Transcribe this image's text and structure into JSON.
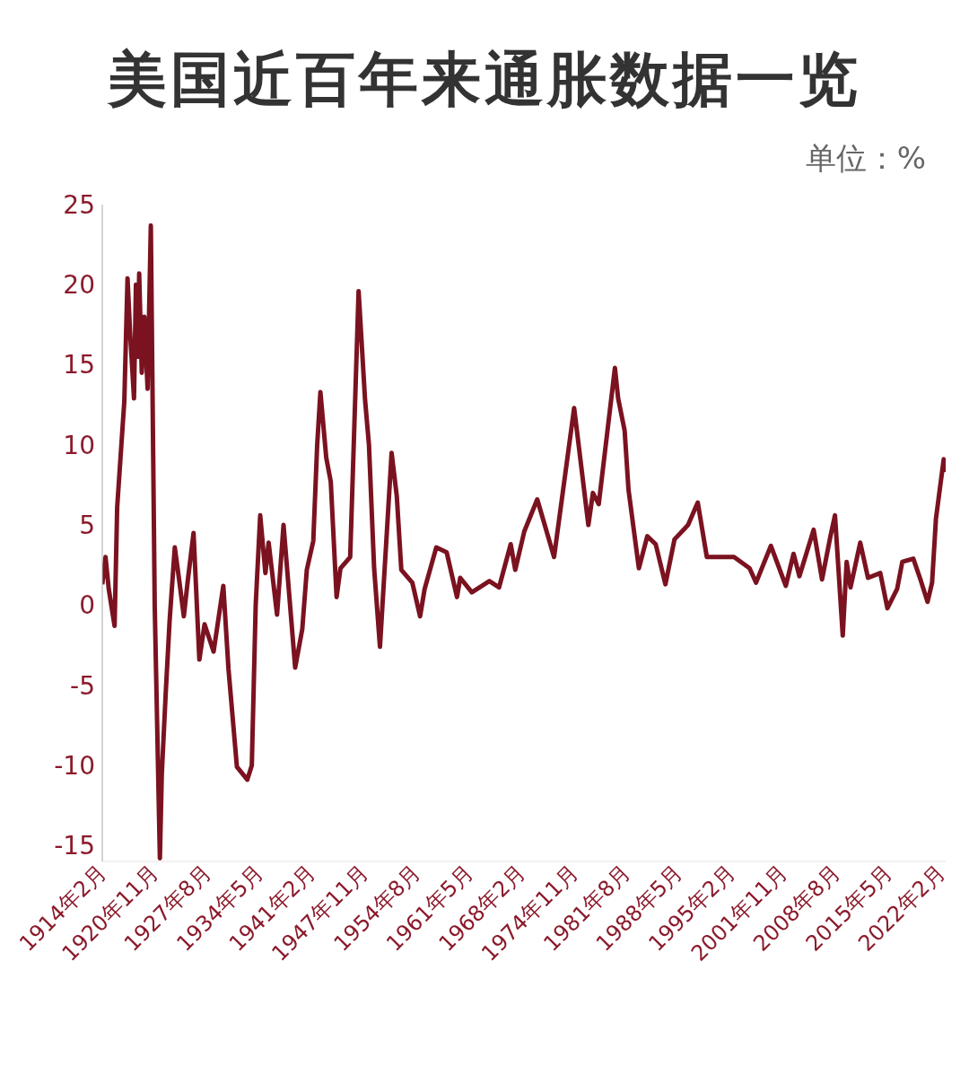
{
  "chart_data": {
    "type": "line",
    "title": "美国近百年来通胀数据一览",
    "annotations": [
      "单位：%"
    ],
    "x": [
      "1914-02",
      "1914-07",
      "1914-12",
      "1915-09",
      "1916-01",
      "1916-12",
      "1917-05",
      "1917-09",
      "1918-03",
      "1918-06",
      "1918-09",
      "1918-11",
      "1919-03",
      "1919-07",
      "1919-12",
      "1920-05",
      "1920-11",
      "1921-07",
      "1921-10",
      "1922-04",
      "1922-10",
      "1923-06",
      "1924-01",
      "1924-08",
      "1925-02",
      "1925-11",
      "1926-08",
      "1927-04",
      "1928-06",
      "1929-09",
      "1930-05",
      "1931-06",
      "1932-10",
      "1933-05",
      "1933-11",
      "1934-06",
      "1935-02",
      "1935-07",
      "1936-08",
      "1937-06",
      "1938-12",
      "1939-11",
      "1940-06",
      "1941-04",
      "1941-10",
      "1942-03",
      "1942-12",
      "1943-07",
      "1944-04",
      "1944-10",
      "1946-01",
      "1947-02",
      "1947-12",
      "1948-06",
      "1949-02",
      "1949-11",
      "1951-05",
      "1952-01",
      "1952-08",
      "1954-01",
      "1955-01",
      "1955-08",
      "1957-02",
      "1958-06",
      "1959-10",
      "1960-03",
      "1961-09",
      "1963-12",
      "1965-03",
      "1966-09",
      "1967-04",
      "1968-06",
      "1970-02",
      "1972-04",
      "1974-11",
      "1976-09",
      "1977-04",
      "1978-01",
      "1980-02",
      "1980-07",
      "1981-05",
      "1981-11",
      "1983-03",
      "1984-04",
      "1985-05",
      "1986-08",
      "1987-10",
      "1989-07",
      "1990-10",
      "1991-12",
      "1993-06",
      "1995-06",
      "1997-06",
      "1998-04",
      "2000-03",
      "2002-02",
      "2003-02",
      "2003-11",
      "2005-09",
      "2006-10",
      "2007-11",
      "2008-06",
      "2009-06",
      "2009-12",
      "2010-06",
      "2011-09",
      "2012-09",
      "2014-04",
      "2015-03",
      "2016-06",
      "2017-02",
      "2018-07",
      "2019-06",
      "2020-05",
      "2020-12",
      "2021-06",
      "2022-06",
      "2022-08"
    ],
    "series": [
      {
        "color": "#7b1220",
        "values": [
          1.3,
          3.0,
          1.0,
          -1.3,
          6.1,
          12.7,
          20.4,
          17.0,
          12.9,
          20.0,
          15.5,
          20.7,
          14.5,
          18.0,
          13.5,
          23.7,
          0.0,
          -15.8,
          -10.5,
          -5.5,
          -1.0,
          3.6,
          1.5,
          -0.7,
          1.5,
          4.5,
          -3.4,
          -1.2,
          -2.9,
          1.2,
          -4.0,
          -10.1,
          -10.9,
          -10.0,
          0.0,
          5.6,
          2.0,
          3.9,
          -0.6,
          5.0,
          -3.9,
          -1.5,
          2.2,
          4.0,
          10.0,
          13.3,
          9.2,
          7.7,
          0.5,
          2.3,
          3.0,
          19.6,
          12.8,
          10.0,
          2.3,
          -2.6,
          9.5,
          6.8,
          2.2,
          1.4,
          -0.7,
          1.0,
          3.6,
          3.3,
          0.5,
          1.7,
          0.8,
          1.5,
          1.1,
          3.8,
          2.2,
          4.6,
          6.6,
          3.0,
          12.3,
          5.0,
          7.0,
          6.3,
          14.8,
          12.9,
          10.9,
          7.2,
          2.3,
          4.3,
          3.8,
          1.3,
          4.1,
          5.0,
          6.4,
          3.0,
          3.0,
          3.0,
          2.3,
          1.4,
          3.7,
          1.2,
          3.2,
          1.8,
          4.7,
          1.6,
          4.3,
          5.6,
          -1.9,
          2.7,
          1.1,
          3.9,
          1.7,
          2.0,
          -0.2,
          1.0,
          2.7,
          2.9,
          1.6,
          0.2,
          1.4,
          5.4,
          9.1,
          8.3
        ]
      }
    ],
    "xlim": [
      "1914-02",
      "2022-09"
    ],
    "xticks": [
      {
        "value": "1914-02",
        "label": "1914年2月"
      },
      {
        "value": "1920-11",
        "label": "1920年11月"
      },
      {
        "value": "1927-08",
        "label": "1927年8月"
      },
      {
        "value": "1934-05",
        "label": "1934年5月"
      },
      {
        "value": "1941-02",
        "label": "1941年2月"
      },
      {
        "value": "1947-11",
        "label": "1947年11月"
      },
      {
        "value": "1954-08",
        "label": "1954年8月"
      },
      {
        "value": "1961-05",
        "label": "1961年5月"
      },
      {
        "value": "1968-02",
        "label": "1968年2月"
      },
      {
        "value": "1974-11",
        "label": "1974年11月"
      },
      {
        "value": "1981-08",
        "label": "1981年8月"
      },
      {
        "value": "1988-05",
        "label": "1988年5月"
      },
      {
        "value": "1995-02",
        "label": "1995年2月"
      },
      {
        "value": "2001-11",
        "label": "2001年11月"
      },
      {
        "value": "2008-08",
        "label": "2008年8月"
      },
      {
        "value": "2015-05",
        "label": "2015年5月"
      },
      {
        "value": "2022-02",
        "label": "2022年2月"
      }
    ],
    "ylim": [
      -16,
      25
    ],
    "yticks": [
      -15,
      -10,
      -5,
      0,
      5,
      10,
      15,
      20,
      25
    ]
  }
}
